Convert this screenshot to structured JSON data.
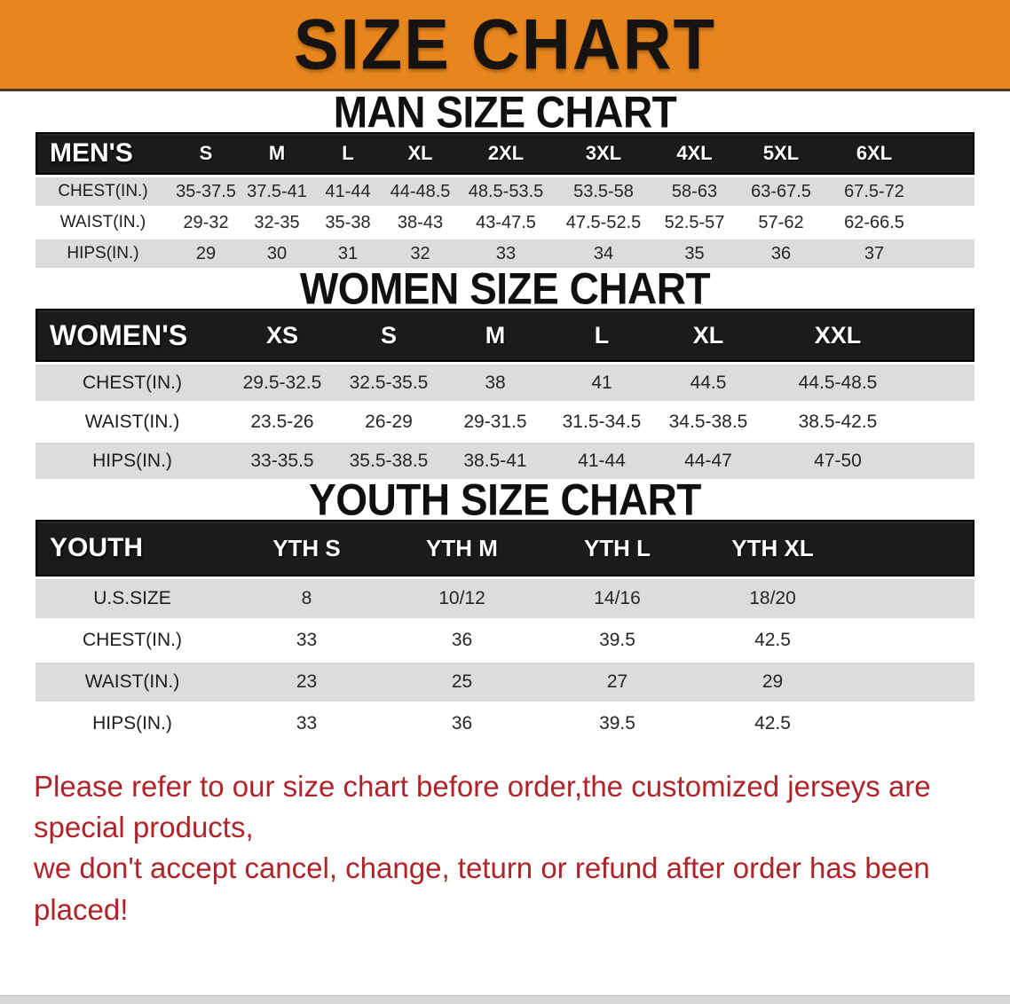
{
  "banner": {
    "title": "SIZE CHART"
  },
  "sections": [
    {
      "heading": "MAN SIZE CHART",
      "table": {
        "label": "MEN'S",
        "columns": [
          "S",
          "M",
          "L",
          "XL",
          "2XL",
          "3XL",
          "4XL",
          "5XL",
          "6XL"
        ],
        "rows": [
          {
            "label": "CHEST(IN.)",
            "values": [
              "35-37.5",
              "37.5-41",
              "41-44",
              "44-48.5",
              "48.5-53.5",
              "53.5-58",
              "58-63",
              "63-67.5",
              "67.5-72"
            ]
          },
          {
            "label": "WAIST(IN.)",
            "values": [
              "29-32",
              "32-35",
              "35-38",
              "38-43",
              "43-47.5",
              "47.5-52.5",
              "52.5-57",
              "57-62",
              "62-66.5"
            ]
          },
          {
            "label": "HIPS(IN.)",
            "values": [
              "29",
              "30",
              "31",
              "32",
              "33",
              "34",
              "35",
              "36",
              "37"
            ]
          }
        ]
      }
    },
    {
      "heading": "WOMEN SIZE CHART",
      "table": {
        "label": "WOMEN'S",
        "columns": [
          "XS",
          "S",
          "M",
          "L",
          "XL",
          "XXL"
        ],
        "rows": [
          {
            "label": "CHEST(IN.)",
            "values": [
              "29.5-32.5",
              "32.5-35.5",
              "38",
              "41",
              "44.5",
              "44.5-48.5"
            ]
          },
          {
            "label": "WAIST(IN.)",
            "values": [
              "23.5-26",
              "26-29",
              "29-31.5",
              "31.5-34.5",
              "34.5-38.5",
              "38.5-42.5"
            ]
          },
          {
            "label": "HIPS(IN.)",
            "values": [
              "33-35.5",
              "35.5-38.5",
              "38.5-41",
              "41-44",
              "44-47",
              "47-50"
            ]
          }
        ]
      }
    },
    {
      "heading": "YOUTH SIZE CHART",
      "table": {
        "label": "YOUTH",
        "columns": [
          "YTH S",
          "YTH M",
          "YTH L",
          "YTH XL"
        ],
        "rows": [
          {
            "label": "U.S.SIZE",
            "values": [
              "8",
              "10/12",
              "14/16",
              "18/20"
            ]
          },
          {
            "label": "CHEST(IN.)",
            "values": [
              "33",
              "36",
              "39.5",
              "42.5"
            ]
          },
          {
            "label": "WAIST(IN.)",
            "values": [
              "23",
              "25",
              "27",
              "29"
            ]
          },
          {
            "label": "HIPS(IN.)",
            "values": [
              "33",
              "36",
              "39.5",
              "42.5"
            ]
          }
        ]
      }
    }
  ],
  "note": {
    "line1": "Please refer to our size chart before order,the customized jerseys are special products,",
    "line2": "we don't accept cancel, change, teturn or refund after order has been placed!"
  },
  "colors": {
    "banner_orange": "#E8861E",
    "header_black": "#1B1B1B",
    "row_gray": "#DCDCDC",
    "row_white": "#FFFFFF",
    "note_red": "#B02328"
  }
}
